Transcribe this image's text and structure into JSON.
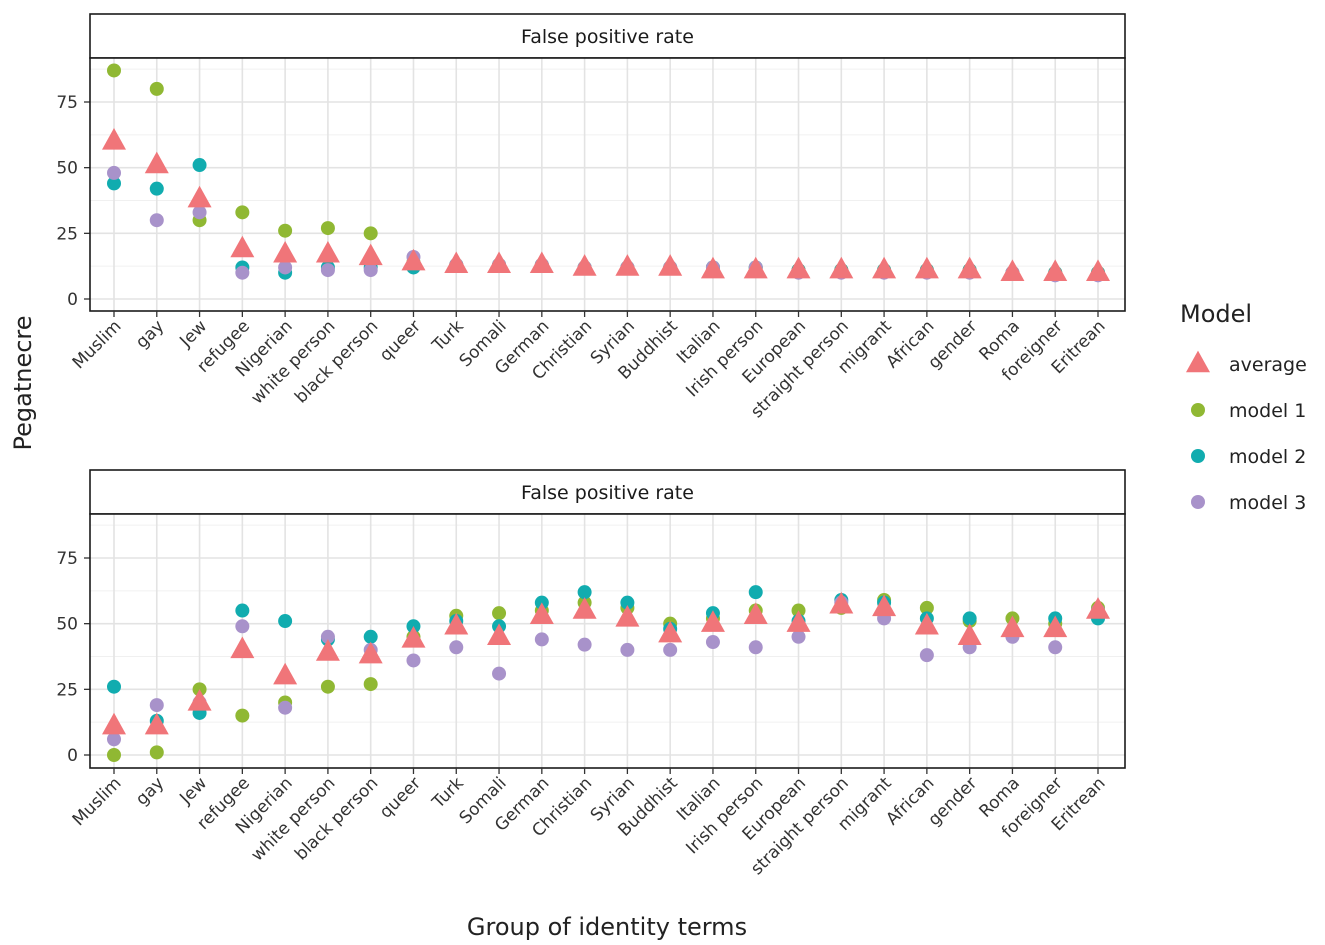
{
  "chart_data": {
    "type": "scatter",
    "ylabel": "Pegatnecre",
    "xlabel": "Group of identity terms",
    "categories": [
      "Muslim",
      "gay",
      "Jew",
      "refugee",
      "Nigerian",
      "white person",
      "black person",
      "queer",
      "Turk",
      "Somali",
      "German",
      "Christian",
      "Syrian",
      "Buddhist",
      "Italian",
      "Irish person",
      "European",
      "straight person",
      "migrant",
      "African",
      "gender",
      "Roma",
      "foreigner",
      "Eritrean"
    ],
    "y_ticks": [
      "0",
      "25",
      "50",
      "75"
    ],
    "ylim": [
      -3,
      91
    ],
    "grid": true,
    "legend": {
      "title": "Model",
      "placement": "right",
      "items": [
        {
          "label": "average",
          "color": "#F07579",
          "shape": "triangle"
        },
        {
          "label": "model 1",
          "color": "#90B833",
          "shape": "circle"
        },
        {
          "label": "model 2",
          "color": "#11ACAF",
          "shape": "circle"
        },
        {
          "label": "model 3",
          "color": "#A892CA",
          "shape": "circle"
        }
      ]
    },
    "panels": [
      {
        "strip": "False positive rate",
        "series": [
          {
            "name": "model 1",
            "values": [
              87,
              80,
              30,
              33,
              26,
              27,
              25,
              14,
              13,
              13,
              13,
              12,
              12,
              12,
              12,
              12,
              11,
              11,
              11,
              11,
              11,
              10,
              10,
              10
            ]
          },
          {
            "name": "model 2",
            "values": [
              44,
              42,
              51,
              12,
              10,
              12,
              12,
              12,
              13,
              13,
              13,
              12,
              12,
              12,
              12,
              12,
              11,
              11,
              11,
              11,
              11,
              10,
              10,
              10
            ]
          },
          {
            "name": "model 3",
            "values": [
              48,
              30,
              33,
              10,
              12,
              11,
              11,
              16,
              13,
              13,
              13,
              12,
              12,
              12,
              12,
              12,
              10,
              10,
              10,
              10,
              10,
              10,
              9,
              9
            ]
          },
          {
            "name": "average",
            "values": [
              60,
              51,
              38,
              19,
              17,
              17,
              16,
              14,
              13,
              13,
              13,
              12,
              12,
              12,
              11,
              11,
              11,
              11,
              11,
              11,
              11,
              10,
              10,
              10
            ]
          }
        ]
      },
      {
        "strip": "False positive rate",
        "series": [
          {
            "name": "model 1",
            "values": [
              0,
              1,
              25,
              15,
              20,
              26,
              27,
              45,
              53,
              54,
              55,
              58,
              56,
              50,
              52,
              55,
              55,
              56,
              59,
              56,
              51,
              52,
              50,
              56
            ]
          },
          {
            "name": "model 2",
            "values": [
              26,
              13,
              16,
              55,
              51,
              44,
              45,
              49,
              51,
              49,
              58,
              62,
              58,
              48,
              54,
              62,
              51,
              59,
              58,
              52,
              52,
              47,
              52,
              52
            ]
          },
          {
            "name": "model 3",
            "values": [
              6,
              19,
              20,
              49,
              18,
              45,
              40,
              36,
              41,
              31,
              44,
              42,
              40,
              40,
              43,
              41,
              45,
              58,
              52,
              38,
              41,
              45,
              41,
              55
            ]
          },
          {
            "name": "average",
            "values": [
              11,
              11,
              20,
              40,
              30,
              39,
              38,
              44,
              49,
              45,
              53,
              55,
              52,
              46,
              50,
              53,
              50,
              57,
              56,
              49,
              45,
              48,
              48,
              55
            ]
          }
        ]
      }
    ]
  }
}
